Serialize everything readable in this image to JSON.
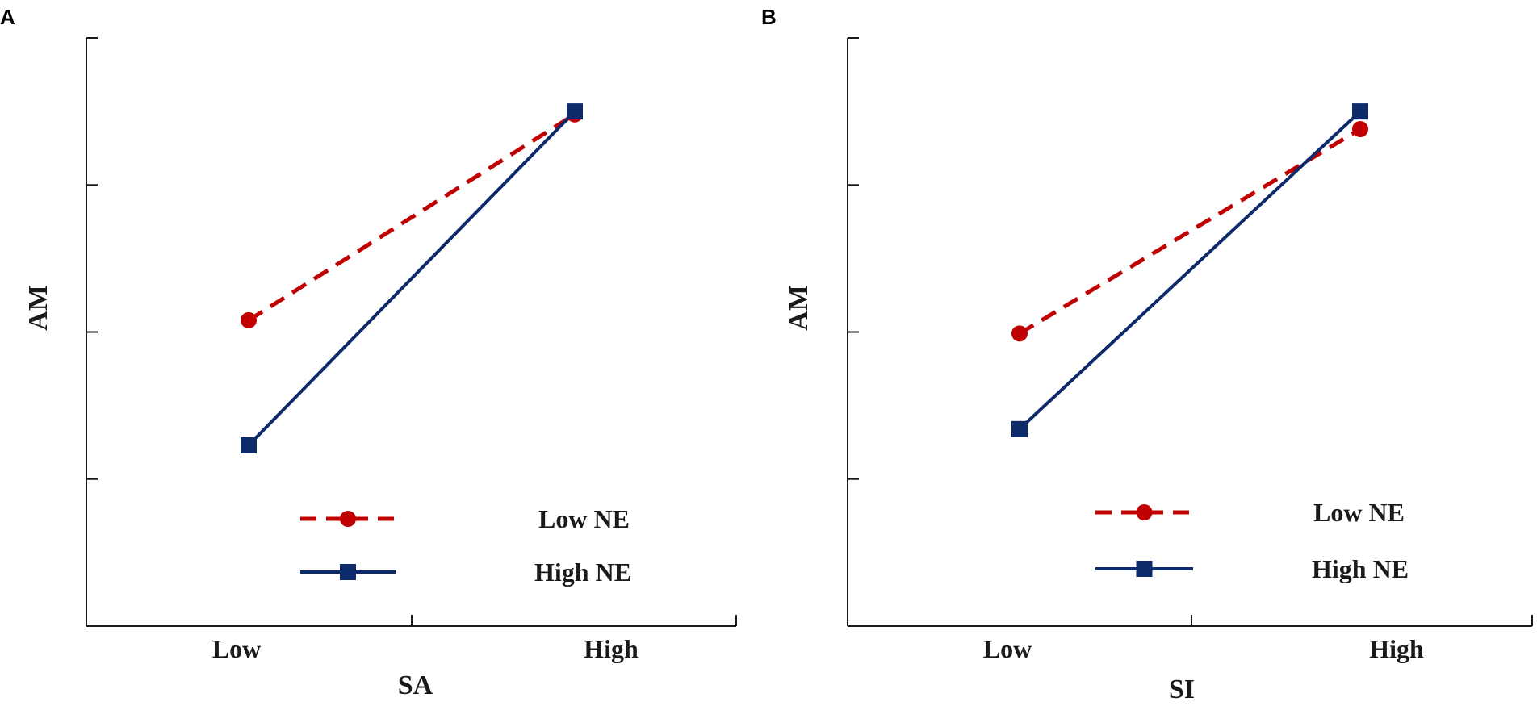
{
  "chart_data": [
    {
      "panel": "A",
      "type": "line",
      "xlabel": "SA",
      "ylabel": "AM",
      "categories": [
        "Low",
        "High"
      ],
      "ylim": [
        0,
        4
      ],
      "yticks": [
        1,
        2,
        3
      ],
      "series": [
        {
          "name": "Low NE",
          "values": [
            2.08,
            3.48
          ],
          "color": "#c00000",
          "style": "dashed",
          "marker": "circle"
        },
        {
          "name": "High NE",
          "values": [
            1.23,
            3.5
          ],
          "color": "#0d2a6b",
          "style": "solid",
          "marker": "square"
        }
      ]
    },
    {
      "panel": "B",
      "type": "line",
      "xlabel": "SI",
      "ylabel": "AM",
      "categories": [
        "Low",
        "High"
      ],
      "ylim": [
        0,
        4
      ],
      "yticks": [
        1,
        2,
        3
      ],
      "series": [
        {
          "name": "Low NE",
          "values": [
            1.99,
            3.38
          ],
          "color": "#c00000",
          "style": "dashed",
          "marker": "circle"
        },
        {
          "name": "High NE",
          "values": [
            1.34,
            3.5
          ],
          "color": "#0d2a6b",
          "style": "solid",
          "marker": "square"
        }
      ]
    }
  ]
}
